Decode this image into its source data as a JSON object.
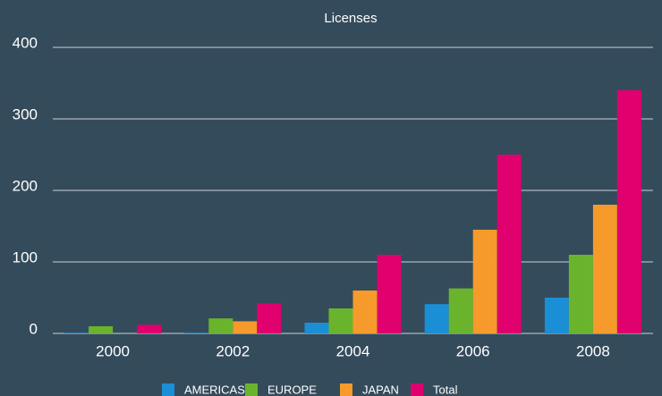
{
  "chart_data": {
    "type": "bar",
    "title": "Licenses",
    "categories": [
      "2000",
      "2002",
      "2004",
      "2006",
      "2008"
    ],
    "series": [
      {
        "name": "AMERICAS",
        "color": "#1a8fd6",
        "values": [
          1,
          1,
          15,
          41,
          50
        ]
      },
      {
        "name": "EUROPE",
        "color": "#6ab42d",
        "values": [
          10,
          21,
          35,
          63,
          110
        ]
      },
      {
        "name": "JAPAN",
        "color": "#f59a2b",
        "values": [
          0,
          17,
          60,
          145,
          180
        ]
      },
      {
        "name": "Total",
        "color": "#e0006e",
        "values": [
          12,
          42,
          110,
          250,
          340
        ]
      }
    ],
    "ylim": [
      0,
      400
    ],
    "yticks": [
      0,
      100,
      200,
      300,
      400
    ],
    "grid": true,
    "legend": "bottom"
  }
}
